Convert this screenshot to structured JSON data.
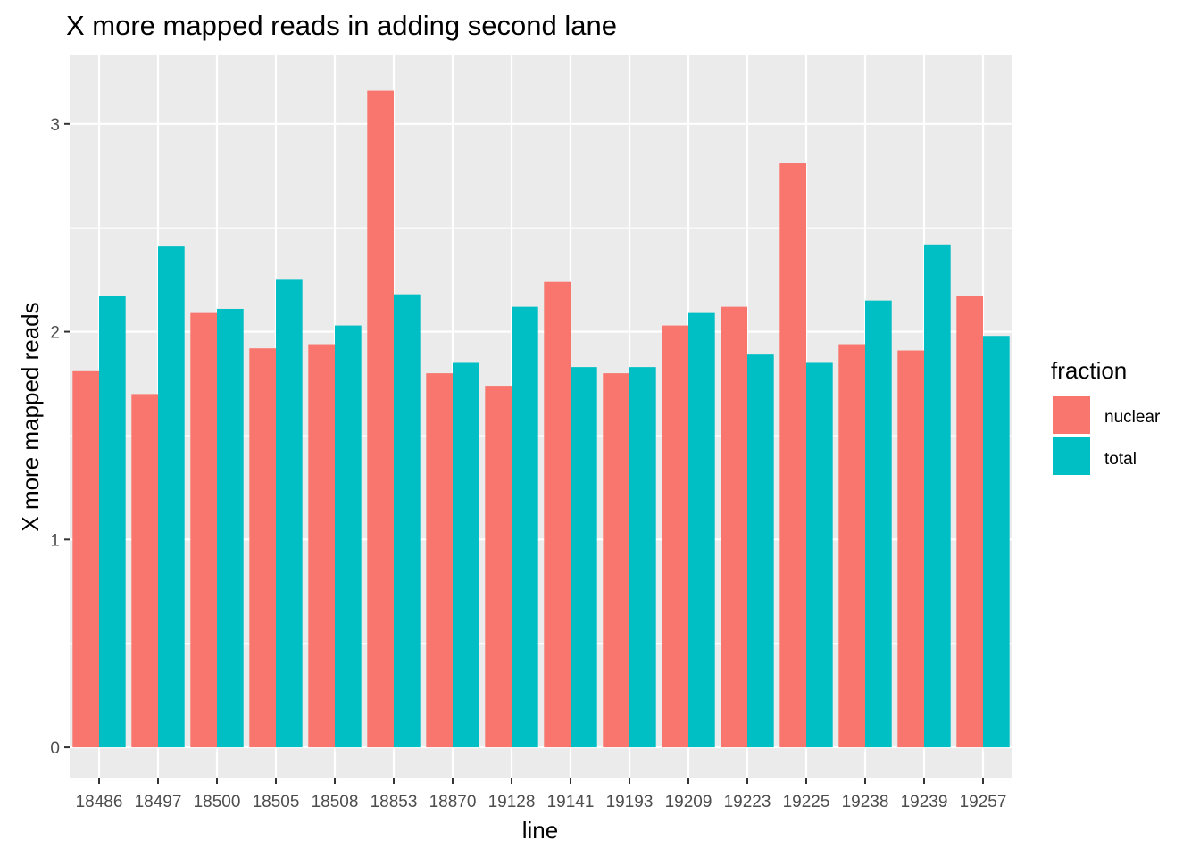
{
  "chart_data": {
    "type": "bar",
    "title": "X more mapped reads in adding second lane",
    "xlabel": "line",
    "ylabel": "X more mapped reads",
    "categories": [
      "18486",
      "18497",
      "18500",
      "18505",
      "18508",
      "18853",
      "18870",
      "19128",
      "19141",
      "19193",
      "19209",
      "19223",
      "19225",
      "19238",
      "19239",
      "19257"
    ],
    "series": [
      {
        "name": "nuclear",
        "color": "#F8766D",
        "values": [
          1.81,
          1.7,
          2.09,
          1.92,
          1.94,
          3.16,
          1.8,
          1.74,
          2.24,
          1.8,
          2.03,
          2.12,
          2.81,
          1.94,
          1.91,
          2.17
        ]
      },
      {
        "name": "total",
        "color": "#00BFC4",
        "values": [
          2.17,
          2.41,
          2.11,
          2.25,
          2.03,
          2.18,
          1.85,
          2.12,
          1.83,
          1.83,
          2.09,
          1.89,
          1.85,
          2.15,
          2.42,
          1.98
        ]
      }
    ],
    "ylim": [
      -0.15,
      3.33
    ],
    "yticks": [
      0,
      1,
      2,
      3
    ],
    "grid": true,
    "legend": {
      "title": "fraction",
      "position": "right"
    }
  }
}
